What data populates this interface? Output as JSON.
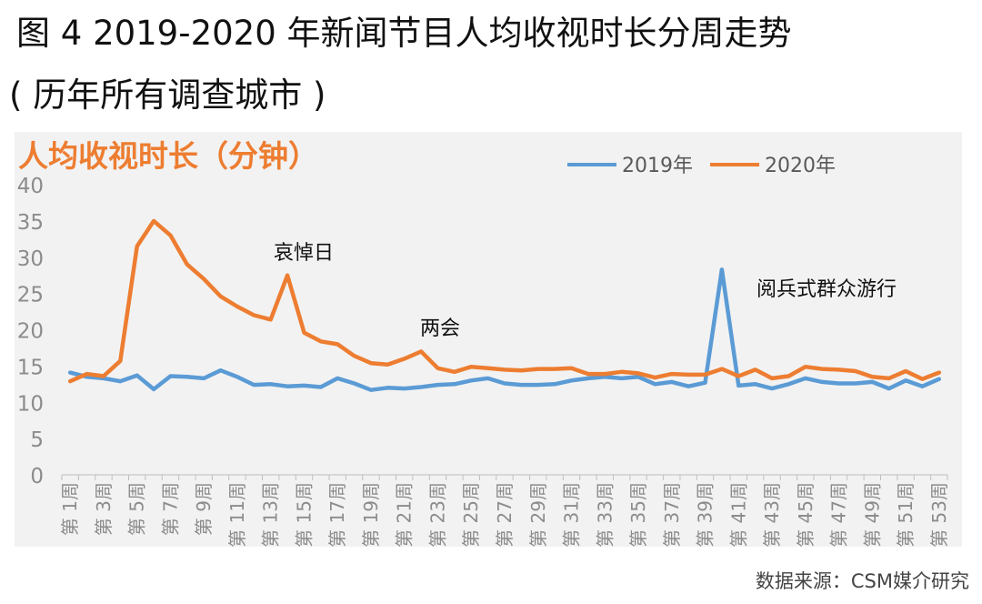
{
  "figure": {
    "title_line1": "图 4 2019-2020 年新闻节目人均收视时长分周走势",
    "title_line2": "( 历年所有调查城市 )",
    "source": "数据来源：CSM媒介研究"
  },
  "colors": {
    "series_2019": "#5b9bd5",
    "series_2020": "#ed7d31",
    "panel_bg": "#f2f2f2",
    "axis_text": "#7f7f7f"
  },
  "chart_data": {
    "type": "line",
    "title": "人均收视时长（分钟）",
    "ylim": [
      0,
      40
    ],
    "yticks": [
      0,
      5,
      10,
      15,
      20,
      25,
      30,
      35,
      40
    ],
    "grid": false,
    "legend_position": "top-right",
    "x": [
      "第 1周",
      "第 2周",
      "第 3周",
      "第 4周",
      "第 5周",
      "第 6周",
      "第 7周",
      "第 8周",
      "第 9周",
      "第 10周",
      "第 11周",
      "第 12周",
      "第 13周",
      "第 14周",
      "第 15周",
      "第 16周",
      "第 17周",
      "第 18周",
      "第 19周",
      "第 20周",
      "第 21周",
      "第 22周",
      "第 23周",
      "第 24周",
      "第 25周",
      "第 26周",
      "第 27周",
      "第 28周",
      "第 29周",
      "第 30周",
      "第 31周",
      "第 32周",
      "第 33周",
      "第 34周",
      "第 35周",
      "第 36周",
      "第 37周",
      "第 38周",
      "第 39周",
      "第 40周",
      "第 41周",
      "第 42周",
      "第 43周",
      "第 44周",
      "第 45周",
      "第 46周",
      "第 47周",
      "第 48周",
      "第 49周",
      "第 50周",
      "第 51周",
      "第 52周",
      "第 53周"
    ],
    "xtick_labels_shown": [
      "第 1周",
      "第 3周",
      "第 5周",
      "第 7周",
      "第 9周",
      "第 11周",
      "第 13周",
      "第 15周",
      "第 17周",
      "第 19周",
      "第 21周",
      "第 23周",
      "第 25周",
      "第 27周",
      "第 29周",
      "第 31周",
      "第 33周",
      "第 35周",
      "第 37周",
      "第 39周",
      "第 41周",
      "第 43周",
      "第 45周",
      "第 47周",
      "第 49周",
      "第 51周",
      "第 53周"
    ],
    "series": [
      {
        "name": "2019年",
        "color": "#5b9bd5",
        "values": [
          14.1,
          13.5,
          13.3,
          12.9,
          13.7,
          11.8,
          13.6,
          13.5,
          13.3,
          14.4,
          13.5,
          12.4,
          12.5,
          12.2,
          12.3,
          12.1,
          13.3,
          12.6,
          11.7,
          12.0,
          11.9,
          12.1,
          12.4,
          12.5,
          13.0,
          13.3,
          12.6,
          12.4,
          12.4,
          12.5,
          13.0,
          13.3,
          13.5,
          13.3,
          13.5,
          12.5,
          12.8,
          12.2,
          12.7,
          28.3,
          12.3,
          12.5,
          11.9,
          12.5,
          13.3,
          12.8,
          12.6,
          12.6,
          12.8,
          11.9,
          13.0,
          12.2,
          13.2
        ]
      },
      {
        "name": "2020年",
        "color": "#ed7d31",
        "values": [
          12.9,
          13.9,
          13.6,
          15.7,
          31.5,
          35.0,
          33.0,
          29.0,
          27.0,
          24.6,
          23.2,
          22.0,
          21.4,
          27.5,
          19.6,
          18.4,
          18.0,
          16.4,
          15.4,
          15.2,
          16.0,
          17.0,
          14.7,
          14.2,
          14.9,
          14.7,
          14.5,
          14.4,
          14.6,
          14.6,
          14.7,
          13.9,
          13.9,
          14.2,
          14.0,
          13.4,
          13.9,
          13.8,
          13.8,
          14.6,
          13.6,
          14.5,
          13.3,
          13.6,
          14.9,
          14.6,
          14.5,
          14.3,
          13.5,
          13.3,
          14.3,
          13.2,
          14.1
        ]
      }
    ],
    "annotations": [
      {
        "text": "哀悼日",
        "x": "第 14周"
      },
      {
        "text": "两会",
        "x": "第 22周"
      },
      {
        "text": "阅兵式群众游行",
        "x": "第 40周"
      }
    ]
  }
}
